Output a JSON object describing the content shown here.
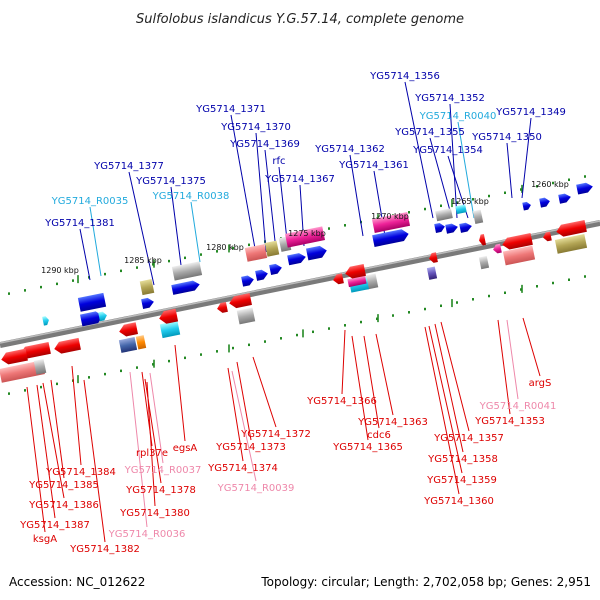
{
  "title": "Sulfolobus islandicus Y.G.57.14, complete genome",
  "accession_text": "Accession: NC_012622",
  "topology_text": "Topology: circular; Length: 2,702,058 bp; Genes: 2,951",
  "colors": {
    "backbone": "#808080",
    "label_blue": "#0000aa",
    "label_cyan": "#22aadd",
    "label_red": "#dd0000",
    "label_pink": "#ee88aa",
    "tick_green": "#228822"
  },
  "scale_labels": [
    "1260 kbp",
    "1265 kbp",
    "1270 kbp",
    "1275 kbp",
    "1280 kbp",
    "1285 kbp",
    "1290 kbp"
  ],
  "top_labels": [
    {
      "text": "YG5714_1356",
      "color": "blue"
    },
    {
      "text": "YG5714_1352",
      "color": "blue"
    },
    {
      "text": "YG5714_R0040",
      "color": "cyan"
    },
    {
      "text": "YG5714_1349",
      "color": "blue"
    },
    {
      "text": "YG5714_1355",
      "color": "blue"
    },
    {
      "text": "YG5714_1350",
      "color": "blue"
    },
    {
      "text": "YG5714_1354",
      "color": "blue"
    },
    {
      "text": "YG5714_1371",
      "color": "blue"
    },
    {
      "text": "YG5714_1370",
      "color": "blue"
    },
    {
      "text": "YG5714_1369",
      "color": "blue"
    },
    {
      "text": "YG5714_1362",
      "color": "blue"
    },
    {
      "text": "rfc",
      "color": "blue"
    },
    {
      "text": "YG5714_1361",
      "color": "blue"
    },
    {
      "text": "YG5714_1377",
      "color": "blue"
    },
    {
      "text": "YG5714_1367",
      "color": "blue"
    },
    {
      "text": "YG5714_1375",
      "color": "blue"
    },
    {
      "text": "YG5714_R0038",
      "color": "cyan"
    },
    {
      "text": "YG5714_R0035",
      "color": "cyan"
    },
    {
      "text": "YG5714_1381",
      "color": "blue"
    }
  ],
  "bottom_labels": [
    {
      "text": "argS",
      "color": "red"
    },
    {
      "text": "YG5714_R0041",
      "color": "pink"
    },
    {
      "text": "YG5714_1353",
      "color": "red"
    },
    {
      "text": "YG5714_1366",
      "color": "red"
    },
    {
      "text": "YG5714_1372",
      "color": "red"
    },
    {
      "text": "YG5714_1363",
      "color": "red"
    },
    {
      "text": "cdc6",
      "color": "red"
    },
    {
      "text": "YG5714_1373",
      "color": "red"
    },
    {
      "text": "YG5714_1365",
      "color": "red"
    },
    {
      "text": "YG5714_1357",
      "color": "red"
    },
    {
      "text": "egsA",
      "color": "red"
    },
    {
      "text": "rpl37e",
      "color": "red"
    },
    {
      "text": "YG5714_1374",
      "color": "red"
    },
    {
      "text": "YG5714_1358",
      "color": "red"
    },
    {
      "text": "YG5714_1384",
      "color": "red"
    },
    {
      "text": "YG5714_R0037",
      "color": "pink"
    },
    {
      "text": "YG5714_1385",
      "color": "red"
    },
    {
      "text": "YG5714_1359",
      "color": "red"
    },
    {
      "text": "YG5714_R0039",
      "color": "pink"
    },
    {
      "text": "YG5714_1378",
      "color": "red"
    },
    {
      "text": "YG5714_1386",
      "color": "red"
    },
    {
      "text": "YG5714_1360",
      "color": "red"
    },
    {
      "text": "YG5714_1380",
      "color": "red"
    },
    {
      "text": "YG5714_1387",
      "color": "red"
    },
    {
      "text": "YG5714_R0036",
      "color": "pink"
    },
    {
      "text": "ksgA",
      "color": "red"
    },
    {
      "text": "YG5714_1382",
      "color": "red"
    }
  ]
}
